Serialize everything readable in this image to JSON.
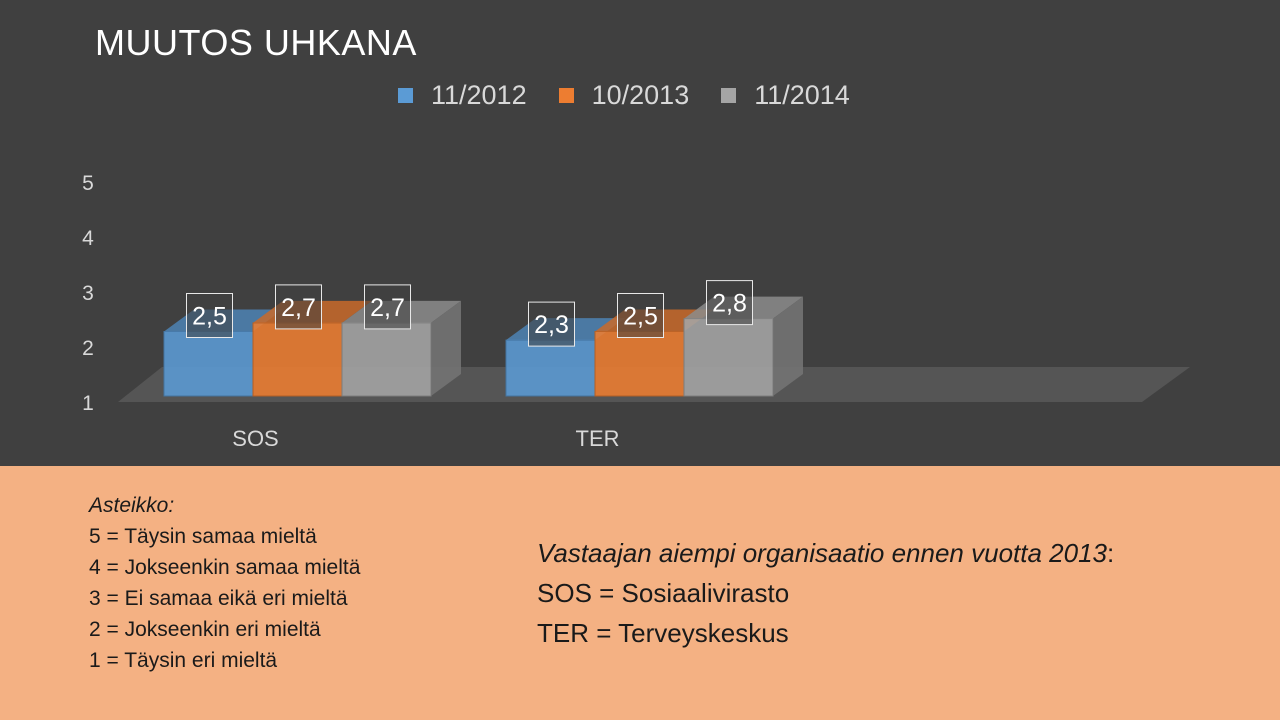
{
  "chart_data": {
    "type": "bar",
    "title": "MUUTOS UHKANA",
    "categories": [
      "SOS",
      "TER"
    ],
    "series": [
      {
        "name": "11/2012",
        "values": [
          2.5,
          2.3
        ],
        "labels": [
          "2,5",
          "2,3"
        ]
      },
      {
        "name": "10/2013",
        "values": [
          2.7,
          2.5
        ],
        "labels": [
          "2,7",
          "2,5"
        ]
      },
      {
        "name": "11/2014",
        "values": [
          2.7,
          2.8
        ],
        "labels": [
          "2,7",
          "2,8"
        ]
      }
    ],
    "yticks": [
      "1",
      "2",
      "3",
      "4",
      "5"
    ],
    "ylim": [
      1,
      5
    ],
    "legend_position": "top",
    "grid": false,
    "colors": {
      "series": [
        "#5b9bd5",
        "#ed7d31",
        "#a5a5a5"
      ],
      "background": "#404040"
    }
  },
  "scale": {
    "title": "Asteikko:",
    "items": [
      "5 = Täysin samaa mieltä",
      "4 = Jokseenkin samaa mieltä",
      "3 = Ei samaa eikä eri mieltä",
      "2 = Jokseenkin eri mieltä",
      "1 = Täysin eri mieltä"
    ]
  },
  "organisations": {
    "title": "Vastaajan aiempi organisaatio ennen vuotta 2013",
    "title_suffix": ":",
    "items": [
      "SOS = Sosiaalivirasto",
      "TER = Terveyskeskus"
    ]
  }
}
